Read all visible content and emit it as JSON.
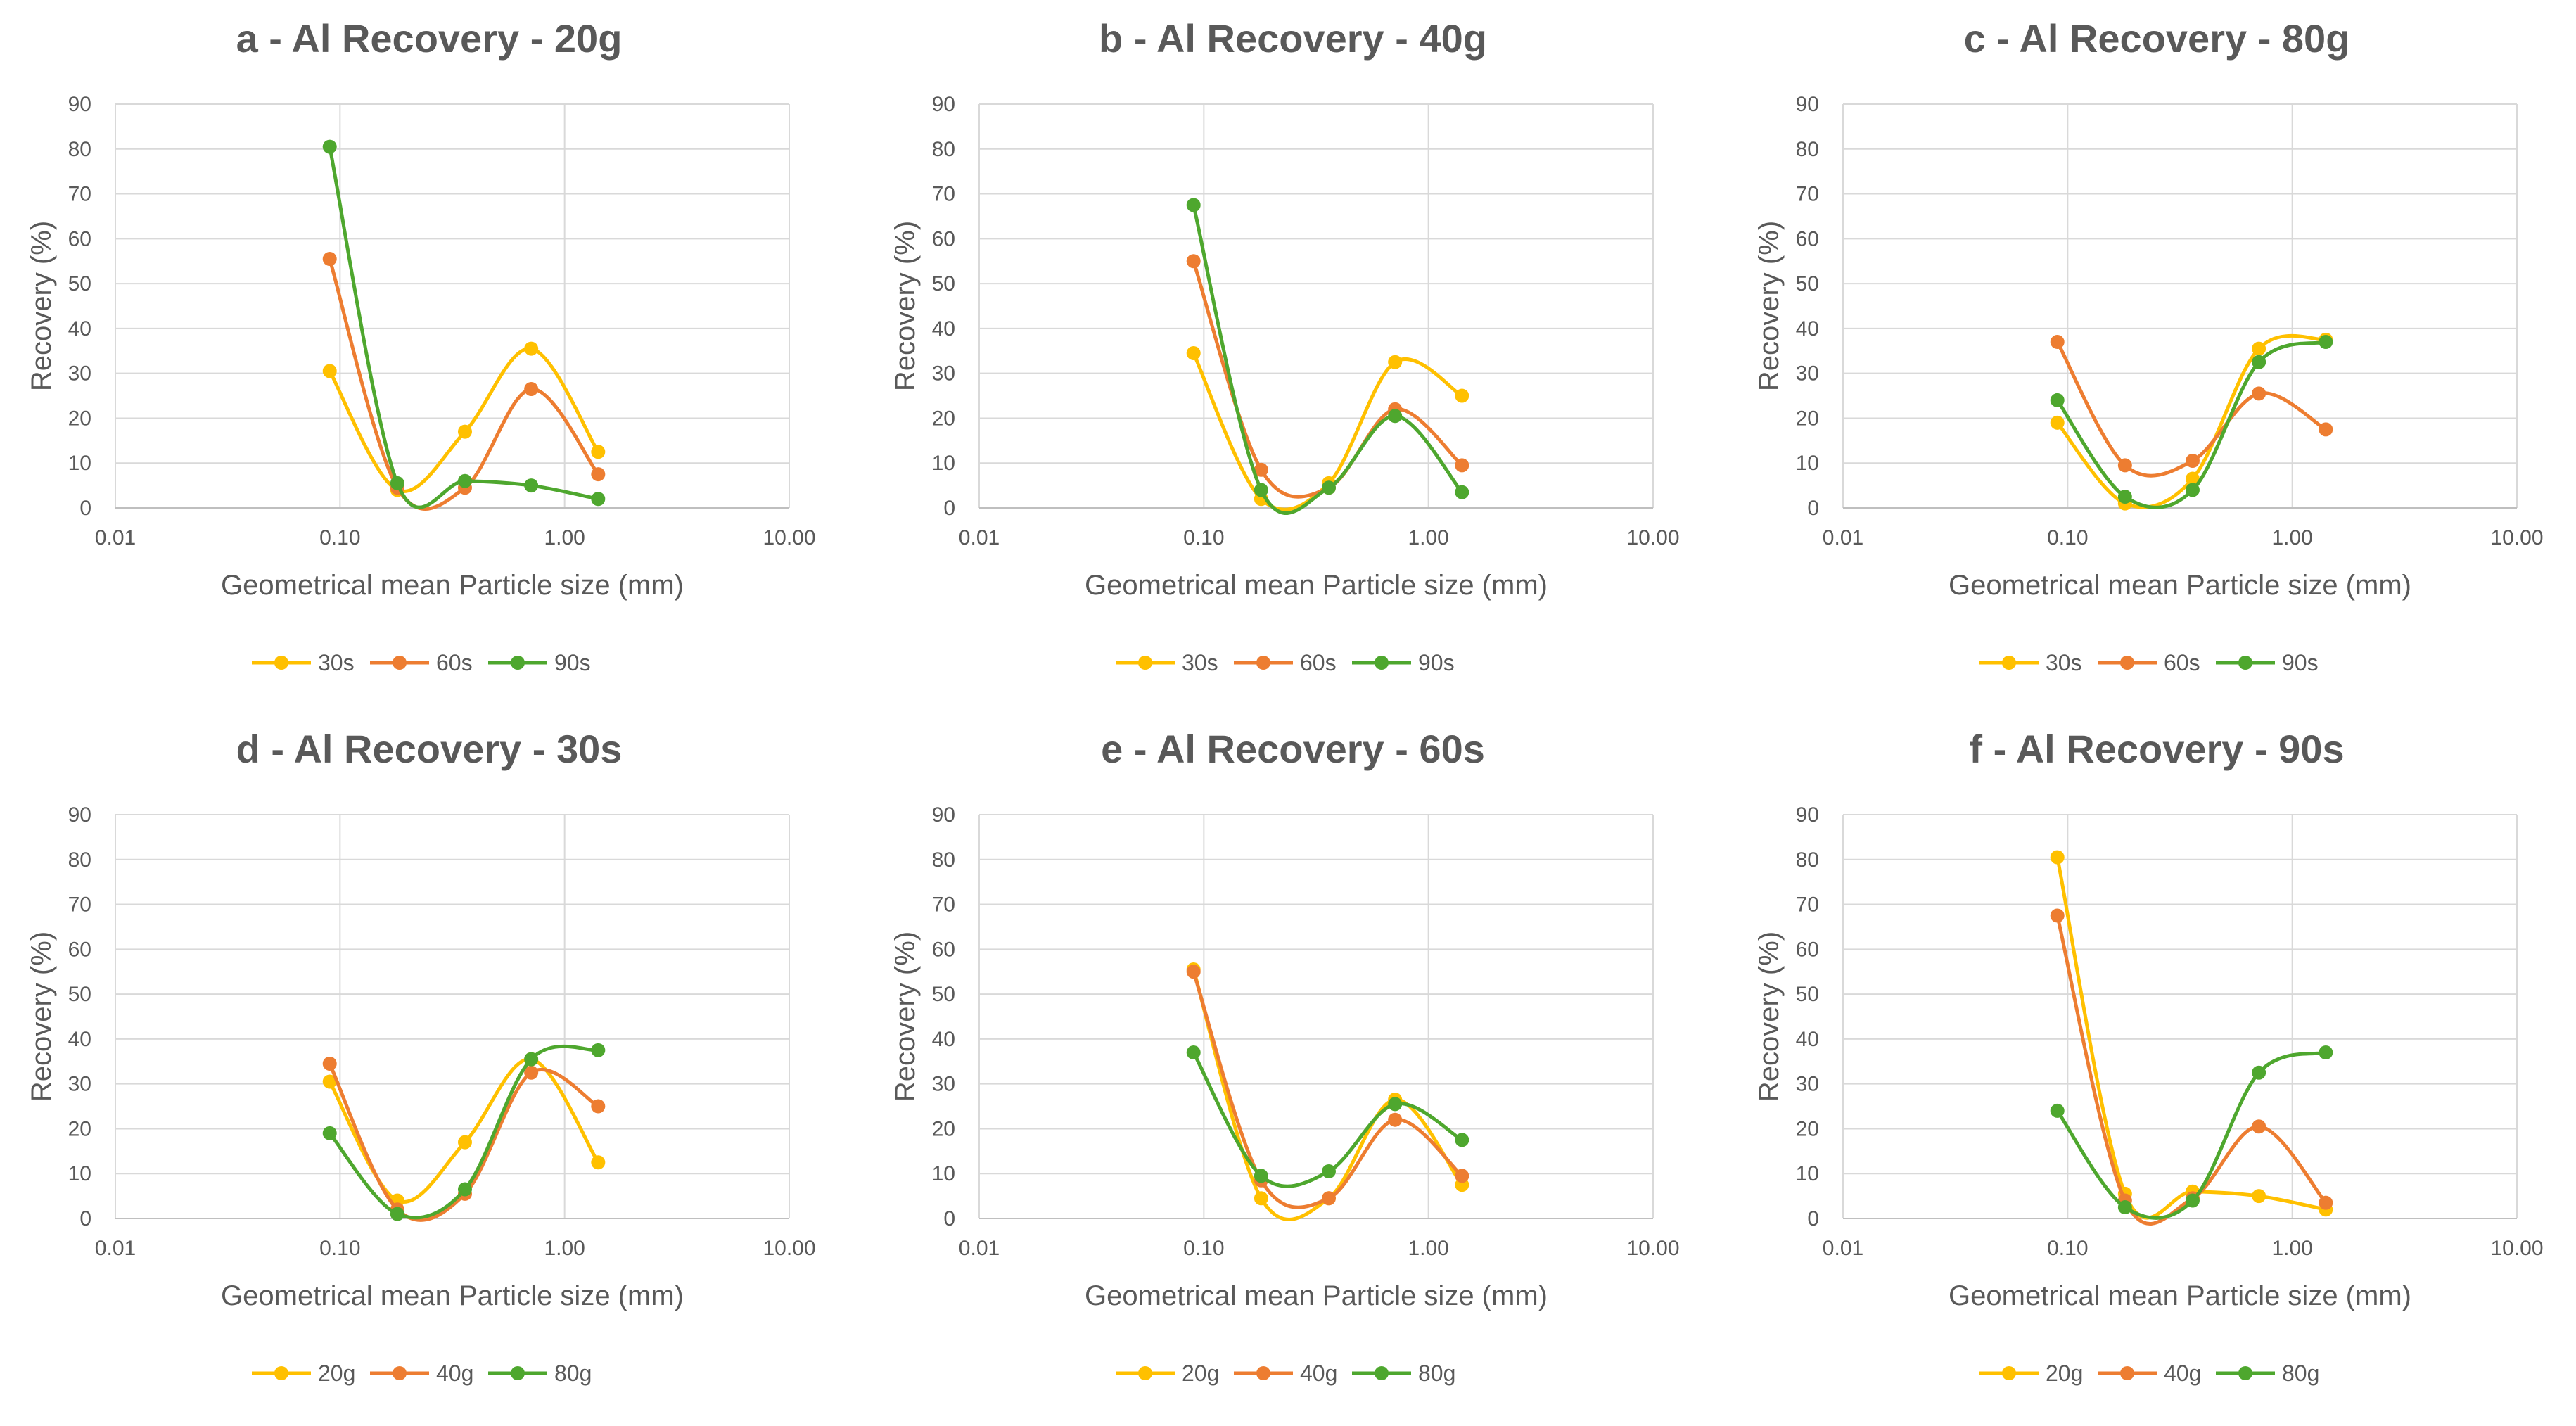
{
  "chart_data": [
    {
      "id": "a",
      "type": "line",
      "xscale": "log",
      "title": "a - Al Recovery - 20g",
      "xlabel": "Geometrical mean Particle size (mm)",
      "ylabel": "Recovery (%)",
      "xlim": [
        0.01,
        10
      ],
      "ylim": [
        0,
        90
      ],
      "xticks": [
        "0.01",
        "0.10",
        "1.00",
        "10.00"
      ],
      "yticks": [
        "0",
        "10",
        "20",
        "30",
        "40",
        "50",
        "60",
        "70",
        "80",
        "90"
      ],
      "x": [
        0.09,
        0.18,
        0.36,
        0.71,
        1.41
      ],
      "series": [
        {
          "name": "30s",
          "color": "#FFC000",
          "values": [
            30.5,
            4.0,
            17.0,
            35.5,
            12.5
          ]
        },
        {
          "name": "60s",
          "color": "#ED7D31",
          "values": [
            55.5,
            4.5,
            4.5,
            26.5,
            7.5
          ]
        },
        {
          "name": "90s",
          "color": "#4EA72E",
          "values": [
            80.5,
            5.5,
            6.0,
            5.0,
            2.0
          ]
        }
      ]
    },
    {
      "id": "b",
      "type": "line",
      "xscale": "log",
      "title": "b - Al Recovery - 40g",
      "xlabel": "Geometrical mean Particle size (mm)",
      "ylabel": "Recovery (%)",
      "xlim": [
        0.01,
        10
      ],
      "ylim": [
        0,
        90
      ],
      "xticks": [
        "0.01",
        "0.10",
        "1.00",
        "10.00"
      ],
      "yticks": [
        "0",
        "10",
        "20",
        "30",
        "40",
        "50",
        "60",
        "70",
        "80",
        "90"
      ],
      "x": [
        0.09,
        0.18,
        0.36,
        0.71,
        1.41
      ],
      "series": [
        {
          "name": "30s",
          "color": "#FFC000",
          "values": [
            34.5,
            2.0,
            5.5,
            32.5,
            25.0
          ]
        },
        {
          "name": "60s",
          "color": "#ED7D31",
          "values": [
            55.0,
            8.5,
            4.5,
            22.0,
            9.5
          ]
        },
        {
          "name": "90s",
          "color": "#4EA72E",
          "values": [
            67.5,
            4.0,
            4.5,
            20.5,
            3.5
          ]
        }
      ]
    },
    {
      "id": "c",
      "type": "line",
      "xscale": "log",
      "title": "c - Al Recovery - 80g",
      "xlabel": "Geometrical mean Particle size (mm)",
      "ylabel": "Recovery (%)",
      "xlim": [
        0.01,
        10
      ],
      "ylim": [
        0,
        90
      ],
      "xticks": [
        "0.01",
        "0.10",
        "1.00",
        "10.00"
      ],
      "yticks": [
        "0",
        "10",
        "20",
        "30",
        "40",
        "50",
        "60",
        "70",
        "80",
        "90"
      ],
      "x": [
        0.09,
        0.18,
        0.36,
        0.71,
        1.41
      ],
      "series": [
        {
          "name": "30s",
          "color": "#FFC000",
          "values": [
            19.0,
            1.0,
            6.5,
            35.5,
            37.5
          ]
        },
        {
          "name": "60s",
          "color": "#ED7D31",
          "values": [
            37.0,
            9.5,
            10.5,
            25.5,
            17.5
          ]
        },
        {
          "name": "90s",
          "color": "#4EA72E",
          "values": [
            24.0,
            2.5,
            4.0,
            32.5,
            37.0
          ]
        }
      ]
    },
    {
      "id": "d",
      "type": "line",
      "xscale": "log",
      "title": "d - Al Recovery - 30s",
      "xlabel": "Geometrical mean Particle size (mm)",
      "ylabel": "Recovery (%)",
      "xlim": [
        0.01,
        10
      ],
      "ylim": [
        0,
        90
      ],
      "xticks": [
        "0.01",
        "0.10",
        "1.00",
        "10.00"
      ],
      "yticks": [
        "0",
        "10",
        "20",
        "30",
        "40",
        "50",
        "60",
        "70",
        "80",
        "90"
      ],
      "x": [
        0.09,
        0.18,
        0.36,
        0.71,
        1.41
      ],
      "series": [
        {
          "name": "20g",
          "color": "#FFC000",
          "values": [
            30.5,
            4.0,
            17.0,
            35.5,
            12.5
          ]
        },
        {
          "name": "40g",
          "color": "#ED7D31",
          "values": [
            34.5,
            2.0,
            5.5,
            32.5,
            25.0
          ]
        },
        {
          "name": "80g",
          "color": "#4EA72E",
          "values": [
            19.0,
            1.0,
            6.5,
            35.5,
            37.5
          ]
        }
      ]
    },
    {
      "id": "e",
      "type": "line",
      "xscale": "log",
      "title": "e - Al Recovery - 60s",
      "xlabel": "Geometrical mean Particle size (mm)",
      "ylabel": "Recovery (%)",
      "xlim": [
        0.01,
        10
      ],
      "ylim": [
        0,
        90
      ],
      "xticks": [
        "0.01",
        "0.10",
        "1.00",
        "10.00"
      ],
      "yticks": [
        "0",
        "10",
        "20",
        "30",
        "40",
        "50",
        "60",
        "70",
        "80",
        "90"
      ],
      "x": [
        0.09,
        0.18,
        0.36,
        0.71,
        1.41
      ],
      "series": [
        {
          "name": "20g",
          "color": "#FFC000",
          "values": [
            55.5,
            4.5,
            4.5,
            26.5,
            7.5
          ]
        },
        {
          "name": "40g",
          "color": "#ED7D31",
          "values": [
            55.0,
            8.5,
            4.5,
            22.0,
            9.5
          ]
        },
        {
          "name": "80g",
          "color": "#4EA72E",
          "values": [
            37.0,
            9.5,
            10.5,
            25.5,
            17.5
          ]
        }
      ]
    },
    {
      "id": "f",
      "type": "line",
      "xscale": "log",
      "title": "f - Al Recovery - 90s",
      "xlabel": "Geometrical mean Particle size (mm)",
      "ylabel": "Recovery (%)",
      "xlim": [
        0.01,
        10
      ],
      "ylim": [
        0,
        90
      ],
      "xticks": [
        "0.01",
        "0.10",
        "1.00",
        "10.00"
      ],
      "yticks": [
        "0",
        "10",
        "20",
        "30",
        "40",
        "50",
        "60",
        "70",
        "80",
        "90"
      ],
      "x": [
        0.09,
        0.18,
        0.36,
        0.71,
        1.41
      ],
      "series": [
        {
          "name": "20g",
          "color": "#FFC000",
          "values": [
            80.5,
            5.5,
            6.0,
            5.0,
            2.0
          ]
        },
        {
          "name": "40g",
          "color": "#ED7D31",
          "values": [
            67.5,
            4.0,
            4.5,
            20.5,
            3.5
          ]
        },
        {
          "name": "80g",
          "color": "#4EA72E",
          "values": [
            24.0,
            2.5,
            4.0,
            32.5,
            37.0
          ]
        }
      ]
    }
  ]
}
